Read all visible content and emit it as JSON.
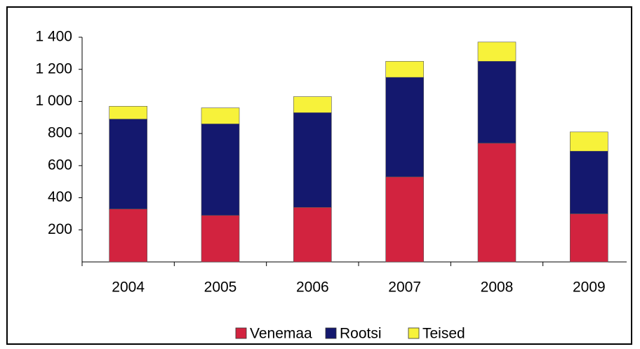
{
  "chart_data": {
    "type": "stacked-bar",
    "categories": [
      "2004",
      "2005",
      "2006",
      "2007",
      "2008",
      "2009"
    ],
    "series": [
      {
        "name": "Venemaa",
        "color": "#d2233f",
        "values": [
          330,
          290,
          340,
          530,
          740,
          300
        ]
      },
      {
        "name": "Rootsi",
        "color": "#14186e",
        "values": [
          560,
          570,
          590,
          620,
          510,
          390
        ]
      },
      {
        "name": "Teised",
        "color": "#f7f23a",
        "values": [
          80,
          100,
          100,
          100,
          120,
          120
        ]
      }
    ],
    "ylim": [
      0,
      1400
    ],
    "yticks": [
      200,
      400,
      600,
      800,
      {
        "value": 1000,
        "label": "1 000"
      },
      {
        "value": 1200,
        "label": "1 200"
      },
      {
        "value": 1400,
        "label": "1 400"
      }
    ],
    "legend": "bottom"
  }
}
